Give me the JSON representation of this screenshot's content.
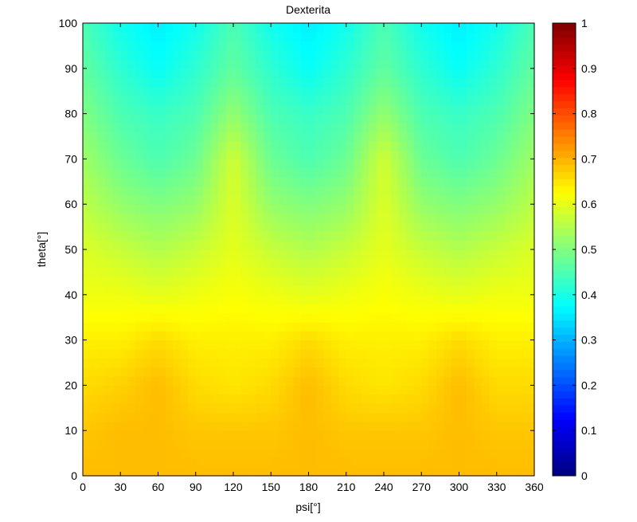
{
  "chart_data": {
    "type": "heatmap",
    "title": "Dexterita",
    "xlabel": "psi[°]",
    "ylabel": "theta[°]",
    "xlim": [
      0,
      360
    ],
    "ylim": [
      0,
      100
    ],
    "x_ticks": [
      0,
      30,
      60,
      90,
      120,
      150,
      180,
      210,
      240,
      270,
      300,
      330,
      360
    ],
    "y_ticks": [
      0,
      10,
      20,
      30,
      40,
      50,
      60,
      70,
      80,
      90,
      100
    ],
    "colorbar": {
      "colormap": "jet",
      "clim": [
        0,
        1
      ],
      "ticks": [
        0,
        0.1,
        0.2,
        0.3,
        0.4,
        0.5,
        0.6,
        0.7,
        0.8,
        0.9,
        1
      ],
      "tick_labels": [
        "0",
        "0.1",
        "0.2",
        "0.3",
        "0.4",
        "0.5",
        "0.6",
        "0.7",
        "0.8",
        "0.9",
        "1"
      ]
    },
    "grid": false,
    "legend": "none",
    "z_grid": {
      "x": [
        0,
        30,
        60,
        90,
        120,
        150,
        180,
        210,
        240,
        270,
        300,
        330,
        360
      ],
      "y": [
        0,
        10,
        20,
        30,
        40,
        50,
        60,
        70,
        80,
        90,
        100
      ],
      "z": [
        [
          0.69,
          0.69,
          0.69,
          0.69,
          0.69,
          0.69,
          0.69,
          0.69,
          0.69,
          0.69,
          0.69,
          0.69,
          0.69
        ],
        [
          0.68,
          0.69,
          0.69,
          0.68,
          0.68,
          0.68,
          0.69,
          0.68,
          0.68,
          0.68,
          0.69,
          0.68,
          0.68
        ],
        [
          0.66,
          0.67,
          0.69,
          0.66,
          0.65,
          0.66,
          0.69,
          0.66,
          0.65,
          0.66,
          0.69,
          0.66,
          0.66
        ],
        [
          0.64,
          0.64,
          0.66,
          0.64,
          0.64,
          0.64,
          0.66,
          0.64,
          0.64,
          0.64,
          0.66,
          0.64,
          0.64
        ],
        [
          0.61,
          0.61,
          0.6,
          0.61,
          0.62,
          0.61,
          0.6,
          0.61,
          0.62,
          0.61,
          0.6,
          0.61,
          0.61
        ],
        [
          0.59,
          0.57,
          0.55,
          0.57,
          0.6,
          0.57,
          0.55,
          0.57,
          0.6,
          0.57,
          0.55,
          0.57,
          0.59
        ],
        [
          0.56,
          0.52,
          0.5,
          0.52,
          0.59,
          0.52,
          0.5,
          0.52,
          0.59,
          0.52,
          0.5,
          0.52,
          0.56
        ],
        [
          0.53,
          0.48,
          0.45,
          0.48,
          0.58,
          0.48,
          0.45,
          0.48,
          0.58,
          0.48,
          0.45,
          0.48,
          0.53
        ],
        [
          0.5,
          0.45,
          0.43,
          0.45,
          0.52,
          0.45,
          0.43,
          0.45,
          0.52,
          0.45,
          0.43,
          0.45,
          0.5
        ],
        [
          0.47,
          0.42,
          0.38,
          0.42,
          0.47,
          0.42,
          0.38,
          0.42,
          0.47,
          0.42,
          0.38,
          0.42,
          0.47
        ],
        [
          0.45,
          0.39,
          0.36,
          0.39,
          0.45,
          0.39,
          0.36,
          0.39,
          0.45,
          0.39,
          0.36,
          0.39,
          0.45
        ]
      ]
    }
  }
}
